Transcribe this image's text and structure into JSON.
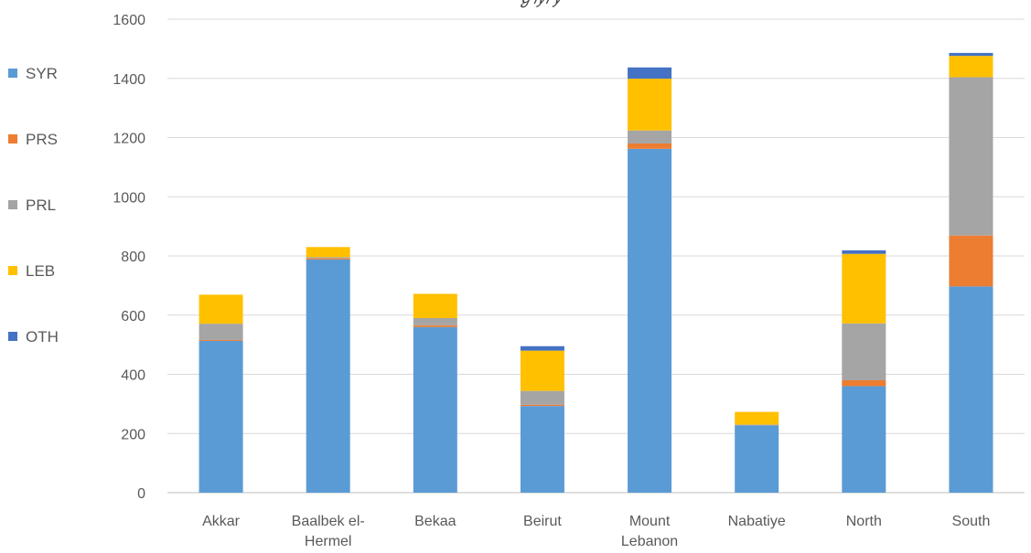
{
  "chart_data": {
    "type": "bar",
    "stacked": true,
    "title": "",
    "xlabel": "",
    "ylabel": "",
    "ylim": [
      0,
      1600
    ],
    "yticks": [
      0,
      200,
      400,
      600,
      800,
      1000,
      1200,
      1400,
      1600
    ],
    "grid": true,
    "legend_position": "left",
    "categories": [
      "Akkar",
      "Baalbek el-Hermel",
      "Bekaa",
      "Beirut",
      "Mount Lebanon",
      "Nabatiye",
      "North",
      "South"
    ],
    "category_lines": [
      [
        "Akkar"
      ],
      [
        "Baalbek el-",
        "Hermel"
      ],
      [
        "Bekaa"
      ],
      [
        "Beirut"
      ],
      [
        "Mount",
        "Lebanon"
      ],
      [
        "Nabatiye"
      ],
      [
        "North"
      ],
      [
        "South"
      ]
    ],
    "series": [
      {
        "name": "SYR",
        "color": "#5B9BD5",
        "values": [
          513,
          788,
          560,
          293,
          1162,
          228,
          360,
          697
        ]
      },
      {
        "name": "PRS",
        "color": "#ED7D31",
        "values": [
          3,
          4,
          6,
          4,
          18,
          1,
          20,
          172
        ]
      },
      {
        "name": "PRL",
        "color": "#A5A5A5",
        "values": [
          55,
          4,
          24,
          47,
          44,
          1,
          192,
          535
        ]
      },
      {
        "name": "LEB",
        "color": "#FFC000",
        "values": [
          98,
          34,
          82,
          136,
          175,
          43,
          235,
          72
        ]
      },
      {
        "name": "OTH",
        "color": "#4472C4",
        "values": [
          0,
          0,
          0,
          15,
          38,
          0,
          12,
          10
        ]
      }
    ]
  }
}
